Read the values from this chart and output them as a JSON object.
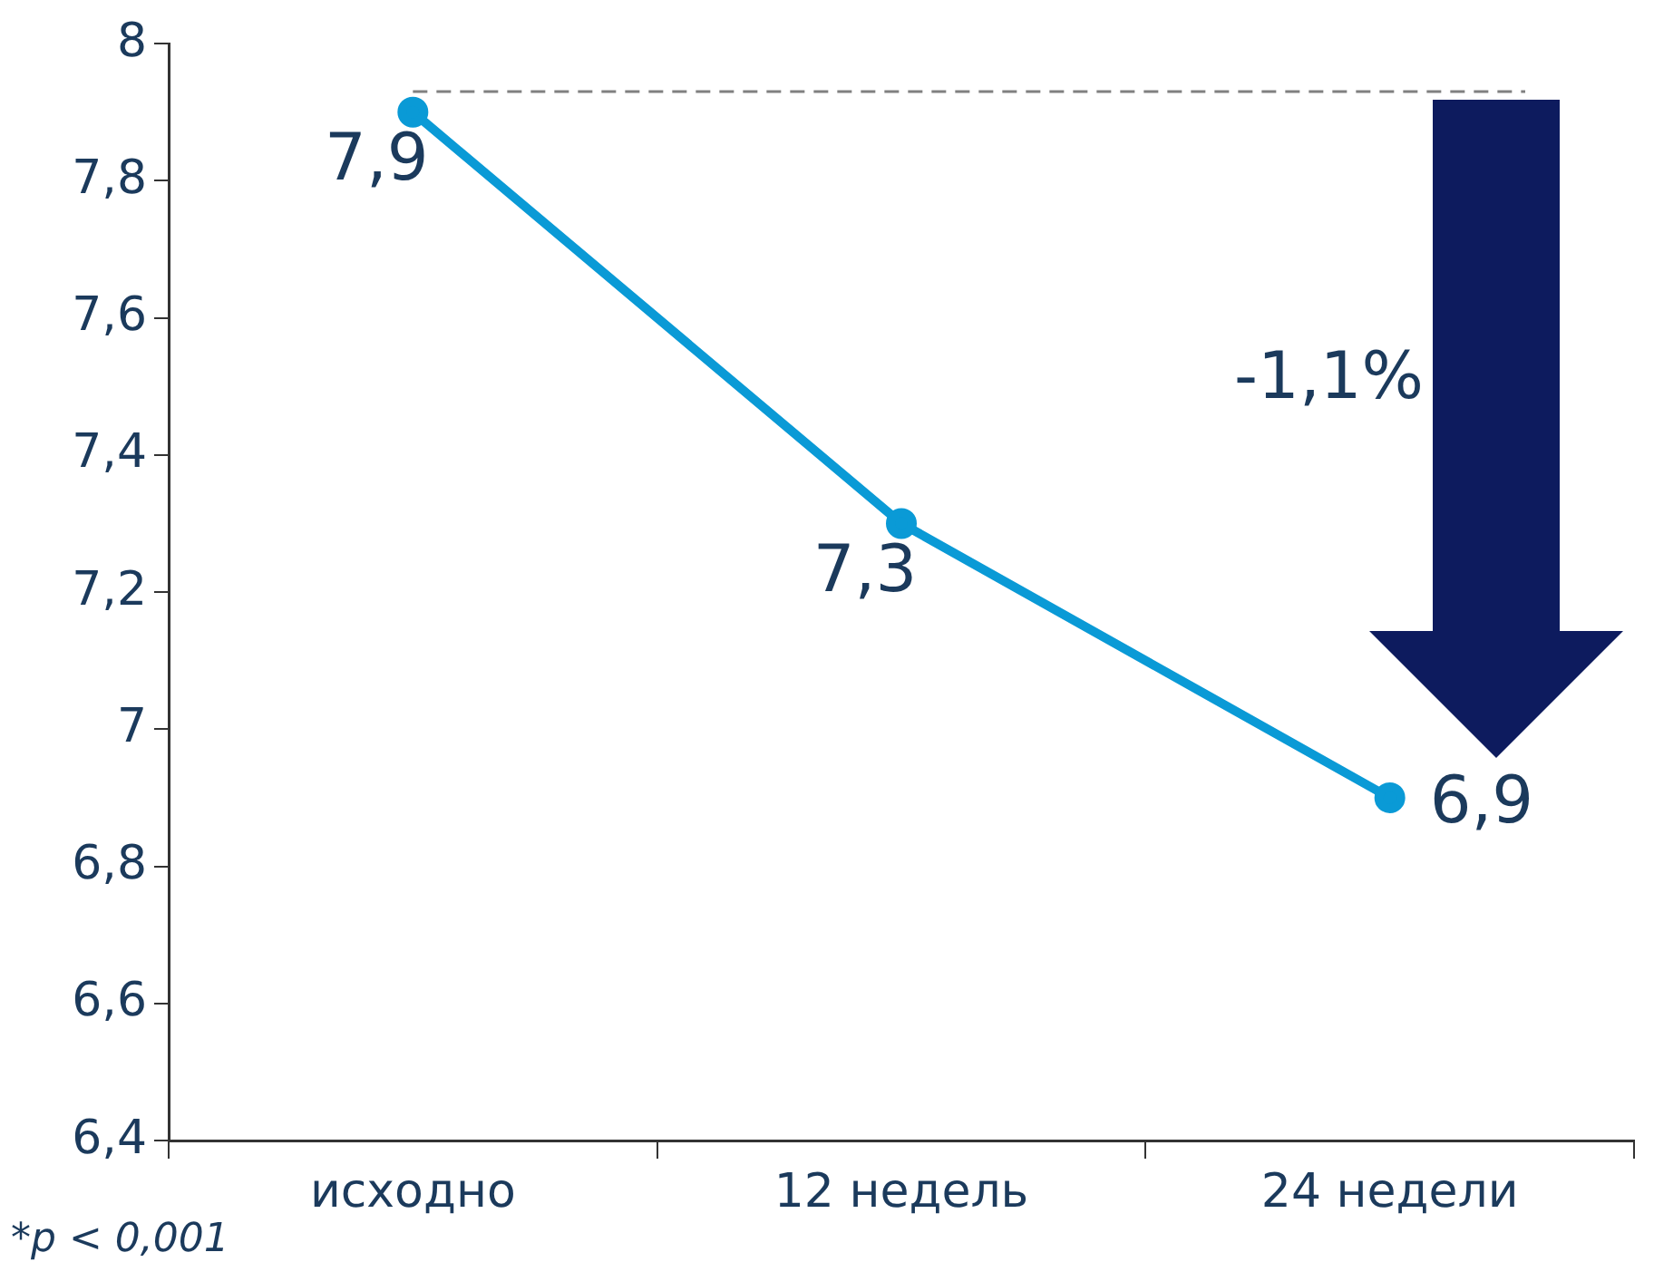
{
  "chart_data": {
    "type": "line",
    "categories": [
      "исходно",
      "12 недель",
      "24 недели"
    ],
    "series": [
      {
        "color": "#0a9ad6",
        "values": [
          7.9,
          7.3,
          6.9
        ],
        "value_labels": [
          "7,9",
          "7,3",
          "6,9"
        ]
      }
    ],
    "ylim": [
      6.4,
      8
    ],
    "yticks": [
      {
        "value": 6.4,
        "label": "6,4"
      },
      {
        "value": 6.6,
        "label": "6,6"
      },
      {
        "value": 6.8,
        "label": "6,8"
      },
      {
        "value": 7,
        "label": "7"
      },
      {
        "value": 7.2,
        "label": "7,2"
      },
      {
        "value": 7.4,
        "label": "7,4"
      },
      {
        "value": 7.6,
        "label": "7,6"
      },
      {
        "value": 7.8,
        "label": "7,8"
      },
      {
        "value": 8,
        "label": "8"
      }
    ],
    "ref_lines": [
      {
        "axis": "y",
        "value": 7.93,
        "color": "#808080",
        "line_style": "dashed"
      }
    ],
    "annotations": [
      "-1,1%",
      "*p < 0,001"
    ],
    "grid": false,
    "legend": false,
    "marker": "circle",
    "line_style": "solid"
  }
}
